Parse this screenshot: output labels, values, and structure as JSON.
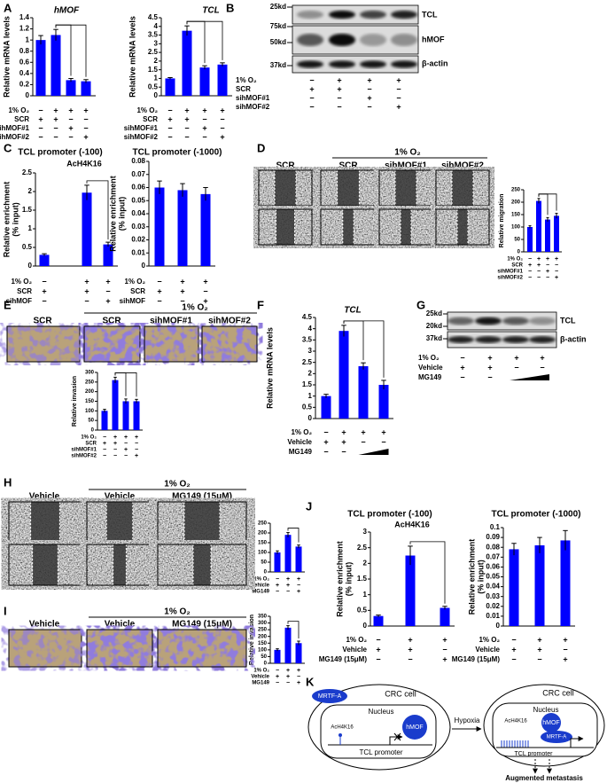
{
  "panel_letters": [
    "A",
    "B",
    "C",
    "D",
    "E",
    "F",
    "G",
    "H",
    "I",
    "J",
    "K"
  ],
  "chart_data": [
    {
      "type": "bar",
      "title": "hMOF",
      "title_style": "italic",
      "y_label": [
        "Relative mRNA levels"
      ],
      "ylim": [
        0,
        1.4
      ],
      "yticks": [
        0,
        0.2,
        0.4,
        0.6,
        0.8,
        1,
        1.2,
        1.4
      ],
      "values": [
        1,
        1.09,
        0.28,
        0.26
      ],
      "errors": [
        0.08,
        0.1,
        0.03,
        0.03
      ],
      "color": "#0000ff",
      "comparisons": [
        [
          1,
          2
        ],
        [
          1,
          3
        ]
      ],
      "conditions": [
        {
          "label": "1% O₂",
          "marks": [
            "−",
            "+",
            "+",
            "+"
          ]
        },
        {
          "label": "SCR",
          "marks": [
            "+",
            "+",
            "−",
            "−"
          ]
        },
        {
          "label": "sihMOF#1",
          "marks": [
            "−",
            "−",
            "+",
            "−"
          ]
        },
        {
          "label": "sihMOF#2",
          "marks": [
            "−",
            "−",
            "−",
            "+"
          ]
        }
      ]
    },
    {
      "type": "bar",
      "title": "TCL",
      "title_style": "italic",
      "y_label": [
        "Relative mRNA levels"
      ],
      "ylim": [
        0,
        4.5
      ],
      "yticks": [
        0,
        0.5,
        1,
        1.5,
        2,
        2.5,
        3,
        3.5,
        4,
        4.5
      ],
      "values": [
        1,
        3.75,
        1.63,
        1.8
      ],
      "errors": [
        0.05,
        0.28,
        0.1,
        0.1
      ],
      "color": "#0000ff",
      "comparisons": [
        [
          1,
          2
        ],
        [
          1,
          3
        ]
      ],
      "conditions": [
        {
          "label": "1% O₂",
          "marks": [
            "−",
            "+",
            "+",
            "+"
          ]
        },
        {
          "label": "SCR",
          "marks": [
            "+",
            "+",
            "−",
            "−"
          ]
        },
        {
          "label": "sihMOF#1",
          "marks": [
            "−",
            "−",
            "+",
            "−"
          ]
        },
        {
          "label": "sihMOF#2",
          "marks": [
            "−",
            "−",
            "−",
            "+"
          ]
        }
      ]
    },
    {
      "type": "bar",
      "title": "TCL promoter (-100)",
      "title_note": "AcH4K16",
      "y_label": [
        "Relative enrichment",
        "(% input)"
      ],
      "ylim": [
        0,
        2.5
      ],
      "yticks": [
        0,
        0.5,
        1,
        1.5,
        2,
        2.5
      ],
      "values": [
        0.3,
        1.97,
        0.58
      ],
      "errors": [
        0.03,
        0.2,
        0.06
      ],
      "color": "#0000ff",
      "comparisons": [
        [
          1,
          2
        ]
      ],
      "conditions": [
        {
          "label": "1% O₂",
          "marks": [
            "−",
            "+",
            "+"
          ]
        },
        {
          "label": "SCR",
          "marks": [
            "+",
            "+",
            "−"
          ]
        },
        {
          "label": "sihMOF",
          "marks": [
            "−",
            "−",
            "+"
          ]
        }
      ]
    },
    {
      "type": "bar",
      "title": "TCL promoter (-1000)",
      "y_label": [
        "Relative enrichment",
        "(% input)"
      ],
      "ylim": [
        0,
        0.08
      ],
      "yticks": [
        0,
        0.01,
        0.02,
        0.03,
        0.04,
        0.05,
        0.06,
        0.07,
        0.08
      ],
      "values": [
        0.06,
        0.058,
        0.055
      ],
      "errors": [
        0.005,
        0.005,
        0.005
      ],
      "color": "#0000ff",
      "comparisons": [],
      "conditions": [
        {
          "label": "1% O₂",
          "marks": [
            "−",
            "+",
            "+"
          ]
        },
        {
          "label": "SCR",
          "marks": [
            "+",
            "+",
            "−"
          ]
        },
        {
          "label": "sihMOF",
          "marks": [
            "−",
            "−",
            "+"
          ]
        }
      ]
    },
    {
      "type": "bar",
      "y_label": [
        "Relative migration"
      ],
      "ylim": [
        0,
        250
      ],
      "yticks": [
        0,
        50,
        100,
        150,
        200,
        250
      ],
      "values": [
        100,
        205,
        130,
        145
      ],
      "errors": [
        5,
        10,
        8,
        10
      ],
      "color": "#0000ff",
      "comparisons": [
        [
          1,
          2
        ],
        [
          1,
          3
        ]
      ],
      "conditions": [
        {
          "label": "1% O₂",
          "marks": [
            "−",
            "+",
            "+",
            "+"
          ]
        },
        {
          "label": "SCR",
          "marks": [
            "+",
            "+",
            "−",
            "−"
          ]
        },
        {
          "label": "sihMOF#1",
          "marks": [
            "−",
            "−",
            "+",
            "−"
          ]
        },
        {
          "label": "sihMOF#2",
          "marks": [
            "−",
            "−",
            "−",
            "+"
          ]
        }
      ]
    },
    {
      "type": "bar",
      "y_label": [
        "Relative invasion"
      ],
      "ylim": [
        0,
        300
      ],
      "yticks": [
        0,
        50,
        100,
        150,
        200,
        250,
        300
      ],
      "values": [
        100,
        260,
        150,
        150
      ],
      "errors": [
        8,
        15,
        12,
        10
      ],
      "color": "#0000ff",
      "comparisons": [
        [
          1,
          2
        ],
        [
          1,
          3
        ]
      ],
      "conditions": [
        {
          "label": "1% O₂",
          "marks": [
            "−",
            "+",
            "+",
            "+"
          ]
        },
        {
          "label": "SCR",
          "marks": [
            "+",
            "+",
            "−",
            "−"
          ]
        },
        {
          "label": "sihMOF#1",
          "marks": [
            "−",
            "−",
            "+",
            "−"
          ]
        },
        {
          "label": "sihMOF#2",
          "marks": [
            "−",
            "−",
            "−",
            "+"
          ]
        }
      ]
    },
    {
      "type": "bar",
      "title": "TCL",
      "title_style": "italic",
      "y_label": [
        "Relative mRNA levels"
      ],
      "ylim": [
        0,
        4.5
      ],
      "yticks": [
        0,
        0.5,
        1,
        1.5,
        2,
        2.5,
        3,
        3.5,
        4,
        4.5
      ],
      "values": [
        1,
        3.9,
        2.33,
        1.5
      ],
      "errors": [
        0.08,
        0.25,
        0.15,
        0.2
      ],
      "color": "#0000ff",
      "comparisons": [
        [
          1,
          2
        ],
        [
          1,
          3
        ]
      ],
      "conditions": [
        {
          "label": "1% O₂",
          "marks": [
            "−",
            "+",
            "+",
            "+"
          ]
        },
        {
          "label": "Vehicle",
          "marks": [
            "+",
            "+",
            "−",
            "−"
          ]
        },
        {
          "label": "MG149",
          "marks": [
            "−",
            "−",
            null,
            null
          ],
          "dose_ramp": true
        }
      ]
    },
    {
      "type": "bar",
      "y_label": [
        "Relative migration"
      ],
      "ylim": [
        0,
        250
      ],
      "yticks": [
        0,
        50,
        100,
        150,
        200,
        250
      ],
      "values": [
        100,
        190,
        130
      ],
      "errors": [
        8,
        12,
        8
      ],
      "color": "#0000ff",
      "comparisons": [
        [
          1,
          2
        ]
      ],
      "conditions": [
        {
          "label": "1% O₂",
          "marks": [
            "−",
            "+",
            "+"
          ]
        },
        {
          "label": "Vehicle",
          "marks": [
            "+",
            "+",
            "−"
          ]
        },
        {
          "label": "MG149",
          "marks": [
            "−",
            "−",
            "+"
          ]
        }
      ]
    },
    {
      "type": "bar",
      "y_label": [
        "Relative invasion"
      ],
      "ylim": [
        0,
        350
      ],
      "yticks": [
        0,
        50,
        100,
        150,
        200,
        250,
        300,
        350
      ],
      "values": [
        100,
        265,
        150
      ],
      "errors": [
        8,
        15,
        15
      ],
      "color": "#0000ff",
      "comparisons": [
        [
          1,
          2
        ]
      ],
      "conditions": [
        {
          "label": "1% O₂",
          "marks": [
            "−",
            "+",
            "+"
          ]
        },
        {
          "label": "Vehicle",
          "marks": [
            "+",
            "+",
            "−"
          ]
        },
        {
          "label": "MG149",
          "marks": [
            "−",
            "−",
            "+"
          ]
        }
      ]
    },
    {
      "type": "bar",
      "title": "TCL promoter (-100)",
      "title_note": "AcH4K16",
      "y_label": [
        "Relative enrichment",
        "(% input)"
      ],
      "ylim": [
        0,
        3
      ],
      "yticks": [
        0,
        0.5,
        1,
        1.5,
        2,
        2.5,
        3
      ],
      "values": [
        0.32,
        2.25,
        0.58
      ],
      "errors": [
        0.03,
        0.3,
        0.05
      ],
      "color": "#0000ff",
      "comparisons": [
        [
          1,
          2
        ]
      ],
      "conditions": [
        {
          "label": "1% O₂",
          "marks": [
            "−",
            "+",
            "+"
          ]
        },
        {
          "label": "Vehicle",
          "marks": [
            "+",
            "+",
            "−"
          ]
        },
        {
          "label": "MG149 (15μM)",
          "marks": [
            "−",
            "−",
            "+"
          ]
        }
      ]
    },
    {
      "type": "bar",
      "title": "TCL promoter (-1000)",
      "y_label": [
        "Relative enrichment",
        "(% input)"
      ],
      "ylim": [
        0,
        0.1
      ],
      "yticks": [
        0,
        0.01,
        0.02,
        0.03,
        0.04,
        0.05,
        0.06,
        0.07,
        0.08,
        0.09,
        0.1
      ],
      "values": [
        0.078,
        0.082,
        0.087
      ],
      "errors": [
        0.006,
        0.008,
        0.01
      ],
      "color": "#0000ff",
      "comparisons": [],
      "conditions": [
        {
          "label": "1% O₂",
          "marks": [
            "−",
            "+",
            "+"
          ]
        },
        {
          "label": "Vehicle",
          "marks": [
            "+",
            "+",
            "−"
          ]
        },
        {
          "label": "MG149 (15μM)",
          "marks": [
            "−",
            "−",
            "+"
          ]
        }
      ]
    }
  ],
  "blots": [
    {
      "markers": [
        "25kd",
        "75kd",
        "50kd",
        "37kd"
      ],
      "row_labels": [
        "TCL",
        "hMOF",
        "β-actin"
      ],
      "conditions": [
        {
          "label": "1% O₂",
          "marks": [
            "−",
            "+",
            "+",
            "+"
          ]
        },
        {
          "label": "SCR",
          "marks": [
            "+",
            "+",
            "−",
            "−"
          ]
        },
        {
          "label": "sihMOF#1",
          "marks": [
            "−",
            "−",
            "+",
            "−"
          ]
        },
        {
          "label": "sihMOF#2",
          "marks": [
            "−",
            "−",
            "−",
            "+"
          ]
        }
      ]
    },
    {
      "markers": [
        "25kd",
        "20kd",
        "37kd"
      ],
      "row_labels": [
        "TCL",
        "β-actin"
      ],
      "conditions": [
        {
          "label": "1% O₂",
          "marks": [
            "−",
            "+",
            "+",
            "+"
          ]
        },
        {
          "label": "Vehicle",
          "marks": [
            "+",
            "+",
            "−",
            "−"
          ]
        },
        {
          "label": "MG149",
          "marks": [
            "−",
            "−",
            null,
            null
          ],
          "dose_ramp": true
        }
      ]
    }
  ],
  "micrographs": [
    {
      "header": "1% O₂",
      "columns": [
        "SCR",
        "SCR",
        "sihMOF#1",
        "sihMOF#2"
      ],
      "kind": "migration"
    },
    {
      "header": "1% O₂",
      "columns": [
        "SCR",
        "SCR",
        "sihMOF#1",
        "sihMOF#2"
      ],
      "kind": "invasion"
    },
    {
      "header": "1% O₂",
      "columns": [
        "Vehicle",
        "Vehicle",
        "MG149 (15μM)"
      ],
      "kind": "migration"
    },
    {
      "header": "1% O₂",
      "columns": [
        "Vehicle",
        "Vehicle",
        "MG149 (15μM)"
      ],
      "kind": "invasion"
    }
  ],
  "diagram": {
    "cell_label": "CRC cell",
    "nucleus_label": "Nucleus",
    "mrtf": "MRTF-A",
    "acetyl": "AcH4K16",
    "hmof": "hMOF",
    "promoter": "TCL promoter",
    "stimulus": "Hypoxia",
    "outcome": "Augmented metastasis"
  }
}
